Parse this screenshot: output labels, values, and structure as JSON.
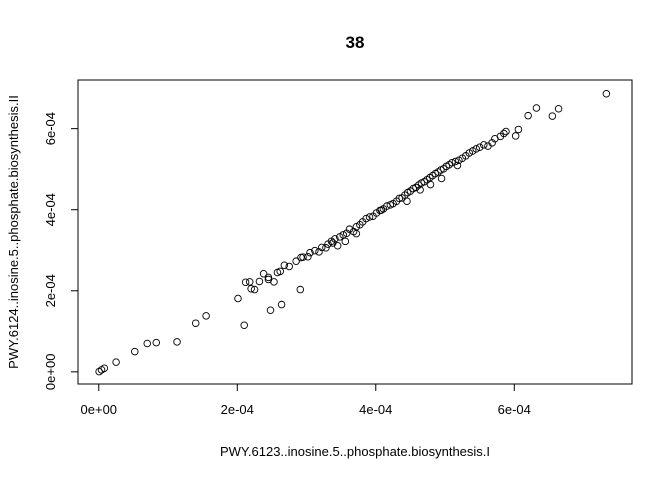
{
  "chart_data": {
    "type": "scatter",
    "title": "38",
    "xlabel": "PWY.6123..inosine.5..phosphate.biosynthesis.I",
    "ylabel": "PWY.6124..inosine.5..phosphate.biosynthesis.II",
    "xlim": [
      -3e-05,
      0.00077
    ],
    "ylim": [
      -3e-05,
      0.00072
    ],
    "xticks": [
      0,
      0.0002,
      0.0004,
      0.0006
    ],
    "xtick_labels": [
      "0e+00",
      "2e-04",
      "4e-04",
      "6e-04"
    ],
    "yticks": [
      0,
      0.0002,
      0.0004,
      0.0006
    ],
    "ytick_labels": [
      "0e+00",
      "2e-04",
      "4e-04",
      "6e-04"
    ],
    "grid": false,
    "marker": "open-circle",
    "x": [
      5e-07,
      4e-06,
      8e-06,
      2.5e-05,
      5.2e-05,
      7e-05,
      8.3e-05,
      0.000113,
      0.00014,
      0.000155,
      0.000201,
      0.00021,
      0.00022,
      0.000218,
      0.000225,
      0.000232,
      0.000238,
      0.000245,
      0.000248,
      0.000253,
      0.000258,
      0.000264,
      0.000268,
      0.000275,
      0.000285,
      0.000291,
      0.000295,
      0.000302,
      0.000305,
      0.000312,
      0.000318,
      0.000322,
      0.000328,
      0.000331,
      0.000336,
      0.000341,
      0.000348,
      0.000345,
      0.000353,
      0.000358,
      0.000362,
      0.000368,
      0.000372,
      0.000377,
      0.000381,
      0.000386,
      0.000391,
      0.000396,
      0.000401,
      0.000406,
      0.000411,
      0.000416,
      0.000421,
      0.000425,
      0.00043,
      0.000434,
      0.000438,
      0.000442,
      0.000446,
      0.00045,
      0.000454,
      0.000458,
      0.000462,
      0.000466,
      0.00047,
      0.000474,
      0.000478,
      0.000482,
      0.000486,
      0.00049,
      0.000494,
      0.000498,
      0.000502,
      0.000506,
      0.00051,
      0.000515,
      0.00052,
      0.000525,
      0.00053,
      0.000535,
      0.00054,
      0.000545,
      0.00055,
      0.000556,
      0.000562,
      0.000568,
      0.000572,
      0.00058,
      0.000585,
      0.000588,
      0.000602,
      0.000606,
      0.00062,
      0.000632,
      0.000655,
      0.000664,
      0.000733,
      0.000245,
      0.000292,
      0.000262,
      0.000212,
      0.000338,
      0.000356,
      0.000372,
      0.000408,
      0.000445,
      0.000464,
      0.000479,
      0.000495,
      0.000518
    ],
    "y": [
      5e-07,
      5e-06,
      9e-06,
      2.4e-05,
      5e-05,
      7e-05,
      7.2e-05,
      7.4e-05,
      0.00012,
      0.000138,
      0.000181,
      0.000115,
      0.000205,
      0.000222,
      0.000203,
      0.000223,
      0.000242,
      0.000233,
      0.000152,
      0.000222,
      0.000245,
      0.000166,
      0.000263,
      0.00026,
      0.000273,
      0.000203,
      0.000283,
      0.000284,
      0.000294,
      0.000299,
      0.000296,
      0.000307,
      0.000306,
      0.000315,
      0.000322,
      0.000328,
      0.000333,
      0.000311,
      0.000338,
      0.000342,
      0.000352,
      0.000346,
      0.000358,
      0.000363,
      0.00037,
      0.000378,
      0.000382,
      0.000384,
      0.000392,
      0.000398,
      0.000402,
      0.000409,
      0.000412,
      0.000415,
      0.000421,
      0.000428,
      0.000429,
      0.000436,
      0.000442,
      0.000446,
      0.000452,
      0.000455,
      0.000461,
      0.000466,
      0.000469,
      0.000474,
      0.000479,
      0.000484,
      0.000489,
      0.000493,
      0.000498,
      0.000501,
      0.000507,
      0.000511,
      0.000516,
      0.000519,
      0.000522,
      0.000527,
      0.000533,
      0.00054,
      0.000545,
      0.00055,
      0.000554,
      0.00056,
      0.000557,
      0.000565,
      0.000575,
      0.000581,
      0.000588,
      0.000593,
      0.000582,
      0.000598,
      0.000632,
      0.000651,
      0.000631,
      0.000649,
      0.000686,
      0.000228,
      0.000282,
      0.000248,
      0.000221,
      0.000318,
      0.000322,
      0.000341,
      0.000399,
      0.000421,
      0.000449,
      0.000462,
      0.000477,
      0.000509
    ]
  }
}
